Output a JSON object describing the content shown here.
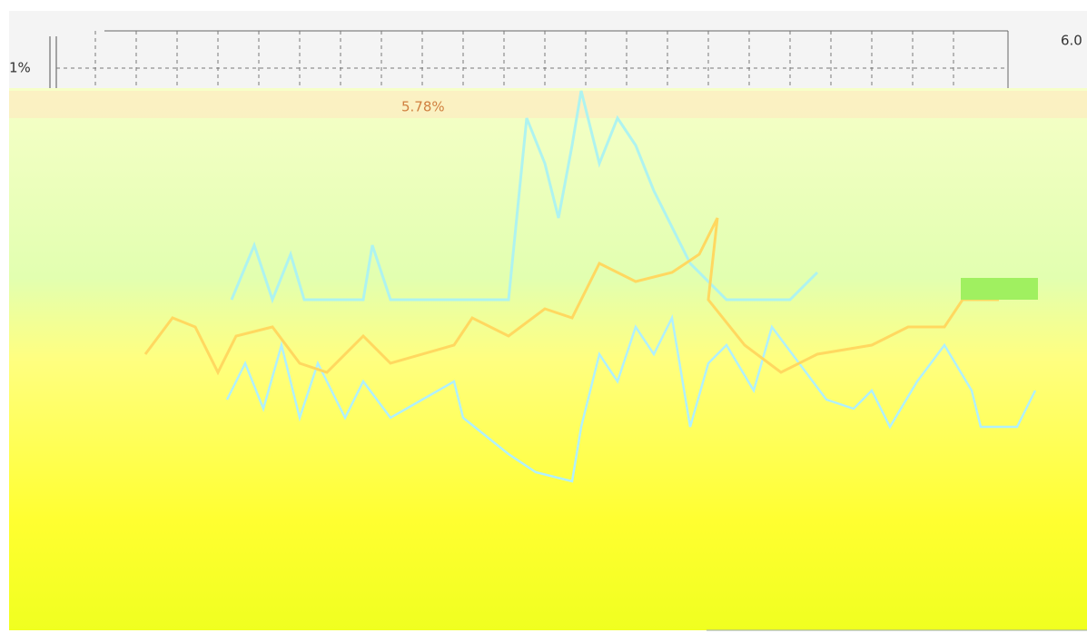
{
  "screen": {
    "left_axis_label": "1%",
    "right_axis_label": "6.0",
    "annotation": "5.78%"
  }
}
